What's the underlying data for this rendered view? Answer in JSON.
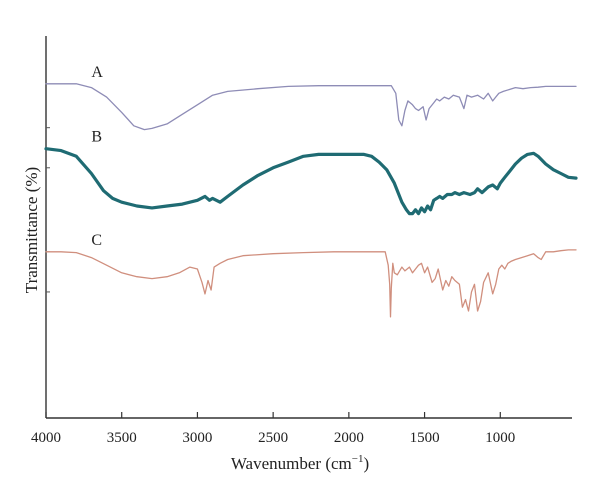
{
  "chart_data": {
    "type": "line",
    "title": "",
    "xlabel": "Wavenumber (cm",
    "xlabel_sup": "−1",
    "xlabel_end": ")",
    "ylabel": "Transmittance (%)",
    "xlim": [
      4000,
      500
    ],
    "x_reversed": true,
    "y_ticks_labeled": false,
    "grid": false,
    "xticks": [
      4000,
      3500,
      3000,
      2500,
      2000,
      1500,
      1000
    ],
    "xtick_labels": [
      "4000",
      "3500",
      "3000",
      "2500",
      "2000",
      "1500",
      "1000"
    ],
    "ylim": [
      0,
      100
    ],
    "series": [
      {
        "name": "A",
        "color": "#8e8cb6",
        "stroke_weight": "thin",
        "points": [
          [
            4000,
            87.5
          ],
          [
            3800,
            87.5
          ],
          [
            3700,
            86.5
          ],
          [
            3600,
            84
          ],
          [
            3500,
            80
          ],
          [
            3420,
            76.5
          ],
          [
            3350,
            75.5
          ],
          [
            3300,
            75.8
          ],
          [
            3200,
            77
          ],
          [
            3100,
            79.5
          ],
          [
            3000,
            82
          ],
          [
            2900,
            84.5
          ],
          [
            2800,
            85.5
          ],
          [
            2600,
            86.2
          ],
          [
            2400,
            86.8
          ],
          [
            2200,
            87
          ],
          [
            2000,
            87
          ],
          [
            1800,
            87
          ],
          [
            1720,
            87
          ],
          [
            1690,
            85
          ],
          [
            1670,
            78
          ],
          [
            1650,
            76.5
          ],
          [
            1630,
            80.5
          ],
          [
            1610,
            83
          ],
          [
            1580,
            82
          ],
          [
            1560,
            81
          ],
          [
            1540,
            80.5
          ],
          [
            1510,
            81.5
          ],
          [
            1490,
            78
          ],
          [
            1470,
            81
          ],
          [
            1440,
            82.5
          ],
          [
            1420,
            83.5
          ],
          [
            1400,
            83
          ],
          [
            1370,
            84
          ],
          [
            1340,
            83.5
          ],
          [
            1310,
            84.5
          ],
          [
            1270,
            84
          ],
          [
            1240,
            81
          ],
          [
            1220,
            84.5
          ],
          [
            1190,
            84
          ],
          [
            1150,
            84.5
          ],
          [
            1110,
            83.5
          ],
          [
            1080,
            85
          ],
          [
            1050,
            83
          ],
          [
            1030,
            84
          ],
          [
            1010,
            85
          ],
          [
            980,
            85.5
          ],
          [
            940,
            86
          ],
          [
            900,
            86.5
          ],
          [
            850,
            86.2
          ],
          [
            800,
            86.5
          ],
          [
            750,
            86.6
          ],
          [
            700,
            86.8
          ],
          [
            600,
            86.8
          ],
          [
            500,
            86.8
          ]
        ]
      },
      {
        "name": "B",
        "color": "#1f6b73",
        "stroke_weight": "thick",
        "points": [
          [
            4000,
            70.5
          ],
          [
            3900,
            70
          ],
          [
            3800,
            68.5
          ],
          [
            3700,
            64
          ],
          [
            3620,
            59.5
          ],
          [
            3560,
            57.5
          ],
          [
            3500,
            56.5
          ],
          [
            3400,
            55.5
          ],
          [
            3300,
            55
          ],
          [
            3200,
            55.5
          ],
          [
            3100,
            56
          ],
          [
            3000,
            57
          ],
          [
            2950,
            58
          ],
          [
            2920,
            57
          ],
          [
            2900,
            57.5
          ],
          [
            2850,
            56.5
          ],
          [
            2800,
            58
          ],
          [
            2700,
            61
          ],
          [
            2600,
            63.5
          ],
          [
            2500,
            65.5
          ],
          [
            2400,
            67
          ],
          [
            2300,
            68.5
          ],
          [
            2200,
            69
          ],
          [
            2100,
            69
          ],
          [
            2000,
            69
          ],
          [
            1900,
            69
          ],
          [
            1850,
            68.5
          ],
          [
            1800,
            67
          ],
          [
            1750,
            65
          ],
          [
            1700,
            61.5
          ],
          [
            1650,
            56.5
          ],
          [
            1620,
            54.5
          ],
          [
            1600,
            53.5
          ],
          [
            1580,
            53.5
          ],
          [
            1560,
            54.5
          ],
          [
            1540,
            53.5
          ],
          [
            1520,
            55
          ],
          [
            1500,
            54
          ],
          [
            1480,
            55.5
          ],
          [
            1460,
            54.5
          ],
          [
            1440,
            57
          ],
          [
            1420,
            57.5
          ],
          [
            1400,
            58
          ],
          [
            1380,
            57.5
          ],
          [
            1350,
            58.5
          ],
          [
            1320,
            58.5
          ],
          [
            1300,
            59
          ],
          [
            1270,
            58.5
          ],
          [
            1240,
            59
          ],
          [
            1200,
            58.5
          ],
          [
            1170,
            59
          ],
          [
            1150,
            60
          ],
          [
            1120,
            59
          ],
          [
            1080,
            60.5
          ],
          [
            1050,
            61
          ],
          [
            1020,
            60
          ],
          [
            1000,
            61.5
          ],
          [
            970,
            63
          ],
          [
            940,
            64.5
          ],
          [
            900,
            66.5
          ],
          [
            860,
            68
          ],
          [
            820,
            69
          ],
          [
            780,
            69.3
          ],
          [
            750,
            68.5
          ],
          [
            700,
            66.5
          ],
          [
            650,
            65
          ],
          [
            600,
            64
          ],
          [
            550,
            63
          ],
          [
            500,
            62.8
          ]
        ]
      },
      {
        "name": "C",
        "color": "#d08f7e",
        "stroke_weight": "thin",
        "points": [
          [
            4000,
            43.5
          ],
          [
            3900,
            43.5
          ],
          [
            3800,
            43.3
          ],
          [
            3700,
            42
          ],
          [
            3600,
            40
          ],
          [
            3500,
            38
          ],
          [
            3400,
            37
          ],
          [
            3300,
            36.5
          ],
          [
            3200,
            37
          ],
          [
            3120,
            38
          ],
          [
            3050,
            39.5
          ],
          [
            3000,
            39
          ],
          [
            2970,
            35.5
          ],
          [
            2950,
            32.5
          ],
          [
            2930,
            36
          ],
          [
            2910,
            33.5
          ],
          [
            2890,
            39.5
          ],
          [
            2850,
            40.5
          ],
          [
            2800,
            41.5
          ],
          [
            2700,
            42.5
          ],
          [
            2500,
            43
          ],
          [
            2300,
            43.3
          ],
          [
            2100,
            43.5
          ],
          [
            1900,
            43.5
          ],
          [
            1800,
            43.5
          ],
          [
            1760,
            43.5
          ],
          [
            1740,
            40
          ],
          [
            1730,
            35
          ],
          [
            1725,
            26.5
          ],
          [
            1720,
            34
          ],
          [
            1710,
            40.5
          ],
          [
            1700,
            38
          ],
          [
            1680,
            37.5
          ],
          [
            1650,
            39.5
          ],
          [
            1630,
            38.5
          ],
          [
            1600,
            39.5
          ],
          [
            1580,
            38
          ],
          [
            1560,
            39
          ],
          [
            1540,
            40
          ],
          [
            1520,
            40.5
          ],
          [
            1500,
            38
          ],
          [
            1480,
            39.5
          ],
          [
            1450,
            35.5
          ],
          [
            1430,
            36.5
          ],
          [
            1410,
            39
          ],
          [
            1380,
            33.5
          ],
          [
            1360,
            36
          ],
          [
            1340,
            34.5
          ],
          [
            1320,
            37
          ],
          [
            1300,
            36
          ],
          [
            1270,
            35
          ],
          [
            1250,
            29
          ],
          [
            1230,
            31
          ],
          [
            1210,
            28
          ],
          [
            1190,
            33
          ],
          [
            1170,
            35
          ],
          [
            1150,
            28
          ],
          [
            1130,
            30.5
          ],
          [
            1110,
            35.5
          ],
          [
            1080,
            38
          ],
          [
            1050,
            32.5
          ],
          [
            1030,
            35
          ],
          [
            1010,
            39
          ],
          [
            990,
            40
          ],
          [
            970,
            39
          ],
          [
            950,
            40.5
          ],
          [
            930,
            41
          ],
          [
            900,
            41.5
          ],
          [
            860,
            42
          ],
          [
            820,
            42.5
          ],
          [
            780,
            43
          ],
          [
            750,
            42
          ],
          [
            730,
            41.5
          ],
          [
            700,
            43.5
          ],
          [
            650,
            43.5
          ],
          [
            600,
            43.8
          ],
          [
            550,
            44
          ],
          [
            500,
            44
          ]
        ]
      }
    ]
  }
}
